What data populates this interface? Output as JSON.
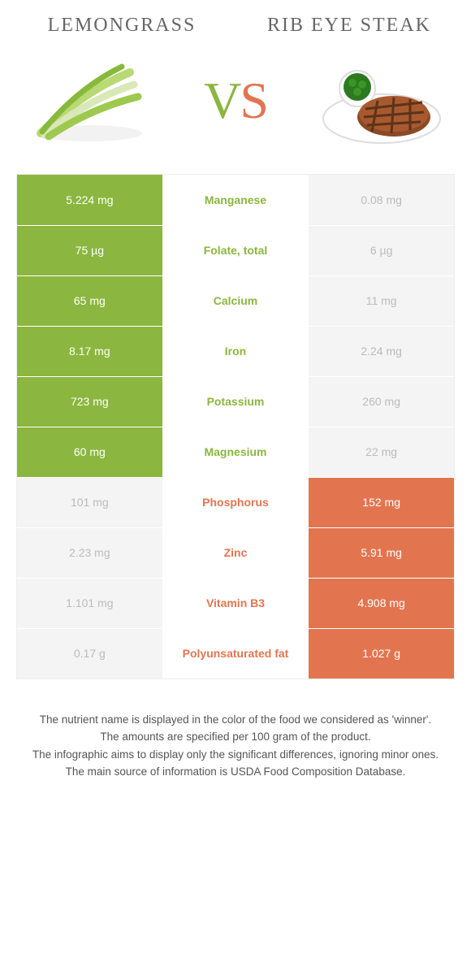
{
  "colors": {
    "left_food": "#8bb63f",
    "right_food": "#e2754f",
    "faded": "#f4f4f4",
    "faded_text": "#bbbbbb",
    "cell_text_on_color": "#ffffff",
    "mid_text_left": "#8bb63f",
    "mid_text_right": "#e2754f"
  },
  "header": {
    "left_title": "Lemongrass",
    "right_title": "Rib eye steak"
  },
  "vs": {
    "v": "V",
    "s": "S"
  },
  "rows": [
    {
      "left": "5.224 mg",
      "mid": "Manganese",
      "right": "0.08 mg",
      "winner": "left"
    },
    {
      "left": "75 µg",
      "mid": "Folate, total",
      "right": "6 µg",
      "winner": "left"
    },
    {
      "left": "65 mg",
      "mid": "Calcium",
      "right": "11 mg",
      "winner": "left"
    },
    {
      "left": "8.17 mg",
      "mid": "Iron",
      "right": "2.24 mg",
      "winner": "left"
    },
    {
      "left": "723 mg",
      "mid": "Potassium",
      "right": "260 mg",
      "winner": "left"
    },
    {
      "left": "60 mg",
      "mid": "Magnesium",
      "right": "22 mg",
      "winner": "left"
    },
    {
      "left": "101 mg",
      "mid": "Phosphorus",
      "right": "152 mg",
      "winner": "right"
    },
    {
      "left": "2.23 mg",
      "mid": "Zinc",
      "right": "5.91 mg",
      "winner": "right"
    },
    {
      "left": "1.101 mg",
      "mid": "Vitamin B3",
      "right": "4.908 mg",
      "winner": "right"
    },
    {
      "left": "0.17 g",
      "mid": "Polyunsaturated fat",
      "right": "1.027 g",
      "winner": "right"
    }
  ],
  "footnotes": [
    "The nutrient name is displayed in the color of the food we considered as 'winner'.",
    "The amounts are specified per 100 gram of the product.",
    "The infographic aims to display only the significant differences, ignoring minor ones.",
    "The main source of information is USDA Food Composition Database."
  ]
}
